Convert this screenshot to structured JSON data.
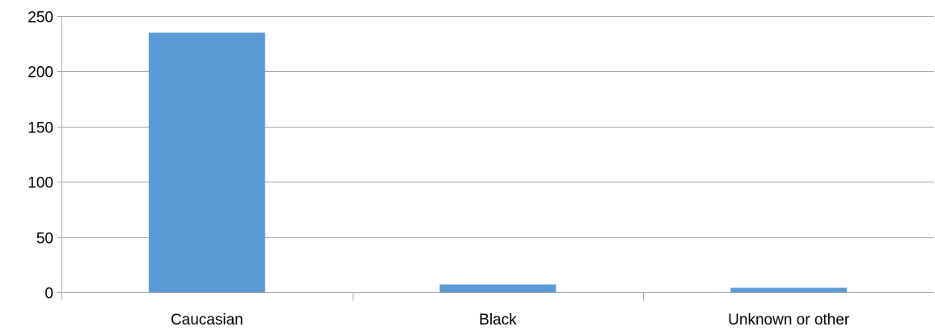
{
  "chart_data": {
    "type": "bar",
    "categories": [
      "Caucasian",
      "Black",
      "Unknown or other"
    ],
    "values": [
      235,
      7,
      4
    ],
    "ylim": [
      0,
      250
    ],
    "yticks": [
      0,
      50,
      100,
      150,
      200,
      250
    ],
    "grid": true,
    "legend": "none",
    "colors": {
      "bar": "#5b9bd5",
      "grid": "#a6a6a6",
      "axis": "#a6a6a6"
    }
  }
}
